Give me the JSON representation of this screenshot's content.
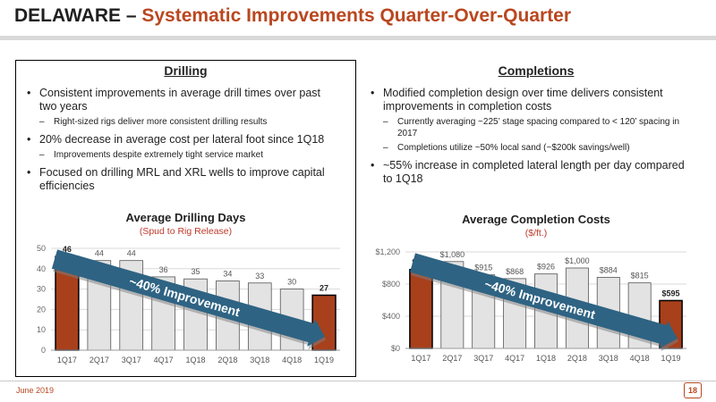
{
  "header": {
    "title_part1": "DELAWARE – ",
    "title_part2": "Systematic Improvements Quarter-Over-Quarter"
  },
  "drilling": {
    "heading": "Drilling",
    "bullets": [
      {
        "text": "Consistent improvements in average drill times over past two years",
        "sub": "Right-sized rigs deliver more consistent drilling results"
      },
      {
        "text": "20% decrease in average cost per lateral foot since 1Q18",
        "sub": "Improvements despite extremely tight service market"
      },
      {
        "text": "Focused on drilling MRL and XRL wells to improve capital efficiencies",
        "sub": ""
      }
    ]
  },
  "completions": {
    "heading": "Completions",
    "bullets": [
      {
        "text": "Modified completion design over time delivers consistent improvements in completion costs",
        "subs": [
          "Currently averaging ~225’ stage spacing compared to < 120’ spacing in 2017",
          "Completions utilize ~50% local sand (~$200k savings/well)"
        ]
      },
      {
        "text": "~55% increase in completed lateral length per day compared to 1Q18",
        "subs": []
      }
    ]
  },
  "chart_data": [
    {
      "type": "bar",
      "title": "Average Drilling Days",
      "subtitle": "(Spud to Rig Release)",
      "categories": [
        "1Q17",
        "2Q17",
        "3Q17",
        "4Q17",
        "1Q18",
        "2Q18",
        "3Q18",
        "4Q18",
        "1Q19"
      ],
      "values": [
        46,
        44,
        44,
        36,
        35,
        34,
        33,
        30,
        27
      ],
      "data_labels": [
        "46",
        "44",
        "44",
        "36",
        "35",
        "34",
        "33",
        "30",
        "27"
      ],
      "highlighted": [
        "1Q17",
        "1Q19"
      ],
      "ylim": [
        0,
        50
      ],
      "yticks": [
        0,
        10,
        20,
        30,
        40,
        50
      ],
      "ytick_labels": [
        "0",
        "10",
        "20",
        "30",
        "40",
        "50"
      ],
      "grid": true,
      "annotation": "~40% Improvement"
    },
    {
      "type": "bar",
      "title": "Average Completion Costs",
      "subtitle": "($/ft.)",
      "categories": [
        "1Q17",
        "2Q17",
        "3Q17",
        "4Q17",
        "1Q18",
        "2Q18",
        "3Q18",
        "4Q18",
        "1Q19"
      ],
      "values": [
        981,
        1080,
        915,
        868,
        926,
        1000,
        884,
        815,
        595
      ],
      "data_labels": [
        "$981",
        "$1,080",
        "$915",
        "$868",
        "$926",
        "$1,000",
        "$884",
        "$815",
        "$595"
      ],
      "highlighted": [
        "1Q17",
        "1Q19"
      ],
      "ylim": [
        0,
        1200
      ],
      "yticks": [
        0,
        400,
        800,
        1200
      ],
      "ytick_labels": [
        "$0",
        "$400",
        "$800",
        "$1,200"
      ],
      "grid": true,
      "annotation": "~40% Improvement"
    }
  ],
  "colors": {
    "accent": "#b9471f",
    "bar_highlight": "#a8401c",
    "bar_normal": "#e3e3e3",
    "arrow": "#2e6383"
  },
  "footer": {
    "date": "June 2019",
    "page": "18"
  }
}
